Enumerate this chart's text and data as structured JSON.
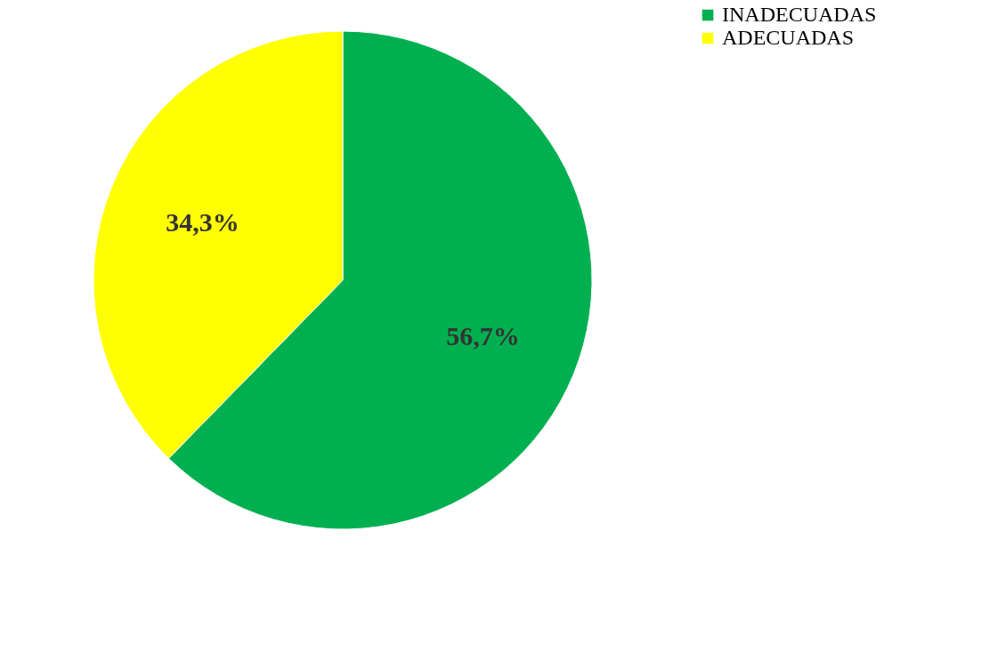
{
  "chart_data": {
    "type": "pie",
    "categories": [
      "INADECUADAS",
      "ADECUADAS"
    ],
    "values": [
      56.7,
      34.3
    ],
    "colors": [
      "#00b050",
      "#ffff00"
    ],
    "value_labels": [
      "56,7%",
      "34,3%"
    ],
    "legend": "right"
  }
}
